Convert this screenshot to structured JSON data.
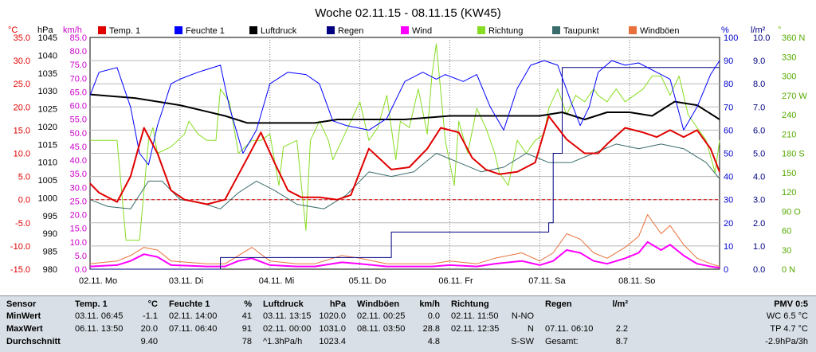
{
  "title": "Woche 02.11.15 - 08.11.15 (KW45)",
  "units": {
    "temp": "°C",
    "press": "hPa",
    "wind": "km/h",
    "hum": "%",
    "rain": "l/m²",
    "dir": "°"
  },
  "axes": {
    "temp_ticks": [
      "35.0",
      "30.0",
      "25.0",
      "20.0",
      "15.0",
      "10.0",
      "5.0",
      "0.0",
      "-5.0",
      "-10.0",
      "-15.0"
    ],
    "press_ticks": [
      "1045",
      "1040",
      "1035",
      "1030",
      "1025",
      "1020",
      "1015",
      "1010",
      "1005",
      "1000",
      "995",
      "990",
      "985",
      "980"
    ],
    "wind_ticks": [
      "85.0",
      "80.0",
      "75.0",
      "70.0",
      "65.0",
      "60.0",
      "55.0",
      "50.0",
      "45.0",
      "40.0",
      "35.0",
      "30.0",
      "25.0",
      "20.0",
      "15.0",
      "10.0",
      "5.0",
      "0.0"
    ],
    "hum_ticks": [
      "100",
      "90",
      "80",
      "70",
      "60",
      "50",
      "40",
      "30",
      "20",
      "10",
      "0"
    ],
    "rain_ticks": [
      "10.0",
      "9.0",
      "8.0",
      "7.0",
      "6.0",
      "5.0",
      "4.0",
      "3.0",
      "2.0",
      "1.0",
      "0.0"
    ],
    "dir_ticks": [
      "360 N",
      "330",
      "300",
      "270 W",
      "240",
      "210",
      "180 S",
      "150",
      "120",
      "90 O",
      "60",
      "30",
      "0 N"
    ],
    "day_labels": [
      "02.11. Mo",
      "03.11. Di",
      "04.11. Mi",
      "05.11. Do",
      "06.11. Fr",
      "07.11. Sa",
      "08.11. So"
    ]
  },
  "legend": [
    {
      "label": "Temp. 1",
      "color": "#e00000"
    },
    {
      "label": "Feuchte 1",
      "color": "#0000ff"
    },
    {
      "label": "Luftdruck",
      "color": "#000000"
    },
    {
      "label": "Regen",
      "color": "#000080"
    },
    {
      "label": "Wind",
      "color": "#ff00ff"
    },
    {
      "label": "Richtung",
      "color": "#88dd22"
    },
    {
      "label": "Taupunkt",
      "color": "#3a6b6b"
    },
    {
      "label": "Windböen",
      "color": "#e8703a"
    }
  ],
  "chart_data": {
    "type": "line",
    "title": "Woche 02.11.15 - 08.11.15 (KW45)",
    "x_unit": "days since 02.11.15 00:00",
    "x_range": [
      0,
      7
    ],
    "series": [
      {
        "name": "Temp. 1",
        "color": "#e00000",
        "axis": "temp",
        "ylim": [
          -15,
          35
        ],
        "x": [
          0,
          0.1,
          0.3,
          0.45,
          0.6,
          0.75,
          0.9,
          1.05,
          1.3,
          1.5,
          1.75,
          1.9,
          2.05,
          2.2,
          2.35,
          2.55,
          2.75,
          2.9,
          3.1,
          3.35,
          3.55,
          3.75,
          3.9,
          4.1,
          4.25,
          4.4,
          4.55,
          4.75,
          4.95,
          5.1,
          5.3,
          5.5,
          5.65,
          5.75,
          5.95,
          6.15,
          6.3,
          6.45,
          6.6,
          6.75,
          6.9,
          7
        ],
        "y": [
          3.5,
          1.5,
          -0.5,
          5,
          15.5,
          10,
          2,
          0,
          -1,
          0,
          9,
          14.5,
          8,
          2,
          0.5,
          0.5,
          0,
          1,
          11,
          6.5,
          7,
          11,
          15.5,
          14.5,
          9,
          6.5,
          5.5,
          6,
          8,
          18,
          13,
          10,
          10,
          12,
          15.5,
          14.5,
          13.5,
          15,
          13.5,
          15,
          11,
          6
        ]
      },
      {
        "name": "Feuchte 1",
        "color": "#0000ff",
        "axis": "hum",
        "ylim": [
          0,
          100
        ],
        "x": [
          0,
          0.1,
          0.3,
          0.45,
          0.55,
          0.65,
          0.75,
          0.9,
          1.0,
          1.2,
          1.45,
          1.55,
          1.7,
          1.85,
          2.0,
          2.2,
          2.4,
          2.55,
          2.7,
          2.85,
          3.1,
          3.3,
          3.5,
          3.7,
          3.85,
          3.95,
          4.15,
          4.3,
          4.45,
          4.6,
          4.75,
          4.9,
          5.05,
          5.2,
          5.35,
          5.45,
          5.55,
          5.65,
          5.8,
          5.95,
          6.1,
          6.3,
          6.45,
          6.6,
          6.75,
          6.9,
          7
        ],
        "y": [
          75,
          85,
          87,
          70,
          50,
          45,
          62,
          80,
          82,
          85,
          88,
          70,
          50,
          60,
          80,
          85,
          84,
          80,
          64,
          62,
          60,
          65,
          81,
          85,
          82,
          84,
          81,
          84,
          70,
          60,
          78,
          88,
          90,
          88,
          72,
          62,
          70,
          85,
          90,
          88,
          89,
          85,
          82,
          60,
          70,
          84,
          90
        ]
      },
      {
        "name": "Luftdruck",
        "color": "#000000",
        "axis": "press",
        "ylim": [
          980,
          1045
        ],
        "x": [
          0,
          0.5,
          1,
          1.5,
          1.75,
          2,
          2.5,
          2.75,
          3,
          3.5,
          4,
          4.5,
          5,
          5.25,
          5.5,
          5.75,
          6,
          6.25,
          6.5,
          6.75,
          7
        ],
        "y": [
          1029,
          1028,
          1026,
          1023,
          1021,
          1021,
          1021,
          1022,
          1022,
          1022,
          1023,
          1023,
          1023,
          1024,
          1022,
          1024,
          1024,
          1023,
          1027,
          1026,
          1022
        ]
      },
      {
        "name": "Taupunkt",
        "color": "#3a6b6b",
        "axis": "temp",
        "ylim": [
          -15,
          35
        ],
        "x": [
          0,
          0.2,
          0.45,
          0.65,
          0.8,
          1.0,
          1.2,
          1.45,
          1.65,
          1.85,
          2.05,
          2.3,
          2.6,
          2.85,
          3.1,
          3.35,
          3.6,
          3.85,
          4.1,
          4.35,
          4.6,
          4.85,
          5.1,
          5.35,
          5.6,
          5.85,
          6.1,
          6.35,
          6.6,
          6.85,
          7
        ],
        "y": [
          0,
          -1.5,
          -2,
          4,
          4,
          0,
          -0.5,
          -2,
          1.5,
          4,
          2,
          -1,
          -2,
          1,
          6,
          5,
          6,
          10,
          8,
          6,
          7,
          10,
          8,
          8,
          10,
          12,
          11,
          12,
          11,
          8,
          4.5
        ]
      },
      {
        "name": "Wind",
        "color": "#ff00ff",
        "axis": "wind",
        "ylim": [
          0,
          85
        ],
        "x": [
          0,
          0.3,
          0.45,
          0.6,
          0.75,
          0.9,
          1.3,
          1.5,
          1.65,
          1.8,
          2.0,
          2.3,
          2.5,
          2.8,
          3.0,
          3.3,
          3.5,
          3.8,
          4.0,
          4.3,
          4.5,
          4.8,
          5.0,
          5.15,
          5.3,
          5.45,
          5.6,
          5.75,
          5.95,
          6.1,
          6.2,
          6.35,
          6.45,
          6.6,
          6.75,
          6.9,
          7
        ],
        "y": [
          1,
          1.5,
          3,
          5.5,
          4.5,
          1.5,
          1,
          1,
          3,
          4,
          1.5,
          1,
          1,
          2.5,
          2,
          1,
          1,
          1,
          1.5,
          1,
          2,
          3,
          1.5,
          3,
          7,
          6,
          3,
          2,
          4,
          6,
          10,
          7,
          9,
          5,
          2,
          1,
          0.5
        ]
      },
      {
        "name": "Windböen",
        "color": "#e8703a",
        "axis": "wind",
        "ylim": [
          0,
          85
        ],
        "x": [
          0,
          0.3,
          0.45,
          0.6,
          0.75,
          0.9,
          1.3,
          1.5,
          1.65,
          1.8,
          2.0,
          2.3,
          2.5,
          2.8,
          3.0,
          3.3,
          3.5,
          3.8,
          4.0,
          4.3,
          4.5,
          4.8,
          5.0,
          5.15,
          5.3,
          5.45,
          5.6,
          5.75,
          5.95,
          6.1,
          6.2,
          6.35,
          6.45,
          6.6,
          6.75,
          6.9,
          7
        ],
        "y": [
          2,
          3,
          5,
          8,
          7,
          3,
          2,
          2,
          5,
          8,
          3,
          2,
          2,
          5,
          4,
          2,
          2,
          2,
          3,
          2,
          4,
          6,
          3,
          6,
          13,
          11,
          6,
          4,
          8,
          12,
          20,
          13,
          16,
          9,
          4,
          2,
          1
        ]
      },
      {
        "name": "Regen",
        "color": "#000080",
        "axis": "rain",
        "ylim": [
          0,
          10
        ],
        "x": [
          0,
          1.4,
          1.45,
          3.0,
          3.3,
          3.35,
          4.0,
          4.5,
          5.0,
          5.1,
          5.15,
          5.25,
          5.6,
          5.7,
          6.0,
          6.5,
          7
        ],
        "y": [
          0,
          0,
          0.5,
          0.5,
          0.5,
          1.6,
          1.6,
          1.6,
          1.6,
          2.0,
          5.0,
          8.7,
          8.7,
          8.7,
          8.7,
          8.7,
          8.7
        ]
      },
      {
        "name": "Richtung",
        "color": "#88dd22",
        "axis": "dir",
        "ylim": [
          0,
          360
        ],
        "x": [
          0,
          0.2,
          0.3,
          0.4,
          0.55,
          0.65,
          0.7,
          0.75,
          0.9,
          1.05,
          1.1,
          1.2,
          1.3,
          1.4,
          1.45,
          1.55,
          1.65,
          1.8,
          1.9,
          2.0,
          2.1,
          2.15,
          2.3,
          2.4,
          2.45,
          2.55,
          2.65,
          2.7,
          2.8,
          2.9,
          3.0,
          3.1,
          3.2,
          3.3,
          3.4,
          3.45,
          3.55,
          3.65,
          3.75,
          3.8,
          3.85,
          3.95,
          4.05,
          4.1,
          4.2,
          4.3,
          4.4,
          4.5,
          4.55,
          4.65,
          4.75,
          4.85,
          4.95,
          5.05,
          5.1,
          5.2,
          5.3,
          5.4,
          5.5,
          5.6,
          5.65,
          5.75,
          5.85,
          5.95,
          6.05,
          6.15,
          6.25,
          6.35,
          6.45,
          6.55,
          6.65,
          6.75,
          6.85,
          6.95,
          7
        ],
        "y": [
          200,
          200,
          200,
          45,
          45,
          200,
          220,
          180,
          190,
          210,
          230,
          210,
          200,
          200,
          280,
          260,
          180,
          200,
          200,
          210,
          130,
          190,
          200,
          60,
          200,
          230,
          200,
          170,
          200,
          230,
          260,
          200,
          220,
          270,
          170,
          230,
          220,
          280,
          210,
          300,
          350,
          200,
          130,
          230,
          180,
          250,
          220,
          180,
          150,
          130,
          200,
          180,
          200,
          210,
          250,
          280,
          240,
          270,
          260,
          280,
          270,
          260,
          280,
          260,
          270,
          280,
          300,
          300,
          270,
          300,
          240,
          220,
          200,
          150,
          200
        ]
      }
    ]
  },
  "summary": {
    "headers": {
      "sensor": "Sensor",
      "temp": "Temp. 1",
      "temp_unit": "°C",
      "hum": "Feuchte 1",
      "hum_unit": "%",
      "press": "Luftdruck",
      "press_unit": "hPa",
      "gust": "Windböen",
      "gust_unit": "km/h",
      "dir": "Richtung",
      "rain": "Regen",
      "rain_unit": "l/m²",
      "pmv": "PMV 0:5"
    },
    "rows": [
      {
        "label": "MinWert",
        "temp_time": "03.11.  06:45",
        "temp_val": "-1.1",
        "hum_time": "02.11.  14:00",
        "hum_val": "41",
        "press_time": "03.11.  13:15",
        "press_val": "1020.0",
        "gust_time": "02.11.  00:25",
        "gust_val": "0.0",
        "dir_time": "02.11.  11:50",
        "dir_val": "N-NO",
        "rain_time": "",
        "rain_val": "",
        "pmv": "WC 6.5 °C"
      },
      {
        "label": "MaxWert",
        "temp_time": "06.11.  13:50",
        "temp_val": "20.0",
        "hum_time": "07.11.  06:40",
        "hum_val": "91",
        "press_time": "02.11.  00:00",
        "press_val": "1031.0",
        "gust_time": "08.11.  03:50",
        "gust_val": "28.8",
        "dir_time": "02.11.  12:35",
        "dir_val": "N",
        "rain_time": "07.11.  06:10",
        "rain_val": "2.2",
        "pmv": "TP 4.7 °C"
      },
      {
        "label": "Durchschnitt",
        "temp_time": "",
        "temp_val": "9.40",
        "hum_time": "",
        "hum_val": "78",
        "press_time": "^1.3hPa/h",
        "press_val": "1023.4",
        "gust_time": "",
        "gust_val": "4.8",
        "dir_time": "",
        "dir_val": "S-SW",
        "rain_time": "Gesamt:",
        "rain_val": "8.7",
        "pmv": "-2.9hPa/3h"
      }
    ]
  }
}
